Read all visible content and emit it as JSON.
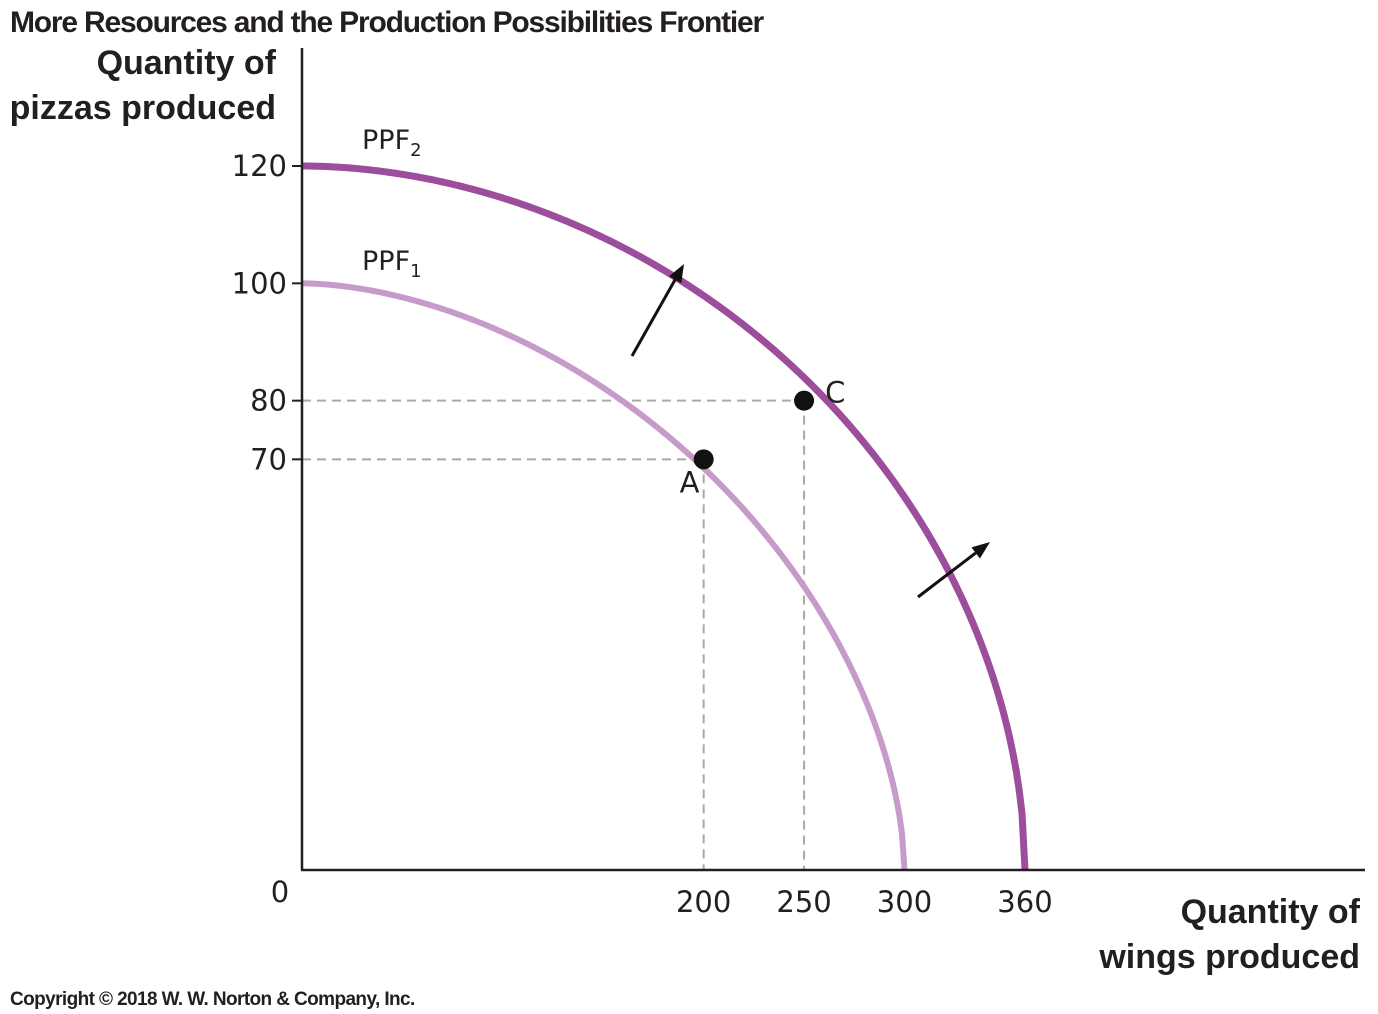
{
  "title": "More Resources and the Production Possibilities Frontier",
  "copyright": "Copyright © 2018 W. W. Norton & Company, Inc.",
  "colors": {
    "ppf1": "#c79bc9",
    "ppf2": "#9c4d9c",
    "axis": "#231f20",
    "guide": "#a9a9a9",
    "point": "#111111",
    "arrow": "#111111"
  },
  "chart_data": {
    "type": "line",
    "title": "More Resources and the Production Possibilities Frontier",
    "ylabel_lines": [
      "Quantity of",
      "pizzas produced"
    ],
    "xlabel_lines": [
      "Quantity of",
      "wings produced"
    ],
    "origin_label": "0",
    "xlim": [
      0,
      360
    ],
    "ylim": [
      0,
      120
    ],
    "x_ticks": [
      200,
      250,
      300,
      360
    ],
    "y_ticks": [
      70,
      80,
      100,
      120
    ],
    "grid": false,
    "series": [
      {
        "name": "PPF",
        "subscript": "1",
        "x_intercept": 300,
        "y_intercept": 100,
        "shape": "concave"
      },
      {
        "name": "PPF",
        "subscript": "2",
        "x_intercept": 360,
        "y_intercept": 120,
        "shape": "concave"
      }
    ],
    "points": [
      {
        "label": "A",
        "x": 200,
        "y": 70,
        "on": "PPF1"
      },
      {
        "label": "C",
        "x": 250,
        "y": 80,
        "on": "PPF2"
      }
    ],
    "shift": "outward"
  }
}
